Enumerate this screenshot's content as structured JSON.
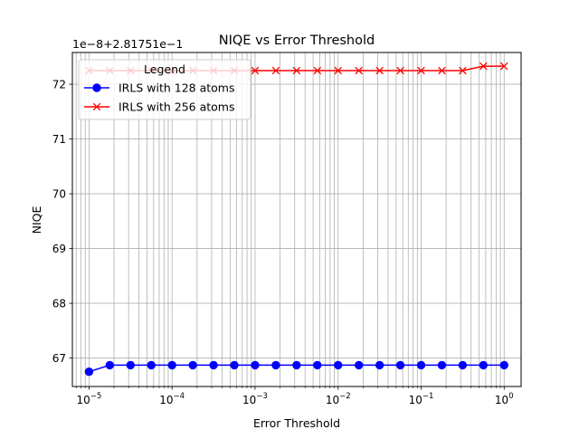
{
  "chart_data": {
    "type": "line",
    "title": "NIQE vs Error Threshold",
    "xlabel": "Error Threshold",
    "ylabel": "NIQE",
    "x_scale": "log",
    "xlim": [
      6.3e-06,
      1.6
    ],
    "ylim": [
      66.48,
      72.58
    ],
    "y_offset_text": "1e−8+2.81751e−1",
    "grid": true,
    "legend": {
      "title": "Legend",
      "placement": "upper-left"
    },
    "x": [
      1e-05,
      1.778e-05,
      3.162e-05,
      5.623e-05,
      0.0001,
      0.0001778,
      0.0003162,
      0.0005623,
      0.001,
      0.001778,
      0.003162,
      0.005623,
      0.01,
      0.01778,
      0.03162,
      0.05623,
      0.1,
      0.1778,
      0.3162,
      0.5623,
      1.0
    ],
    "x_ticks": [
      {
        "value": 1e-05,
        "base": "10",
        "exp": "−5"
      },
      {
        "value": 0.0001,
        "base": "10",
        "exp": "−4"
      },
      {
        "value": 0.001,
        "base": "10",
        "exp": "−3"
      },
      {
        "value": 0.01,
        "base": "10",
        "exp": "−2"
      },
      {
        "value": 0.1,
        "base": "10",
        "exp": "−1"
      },
      {
        "value": 1,
        "base": "10",
        "exp": "0"
      }
    ],
    "y_ticks": [
      {
        "value": 67,
        "label": "67"
      },
      {
        "value": 68,
        "label": "68"
      },
      {
        "value": 69,
        "label": "69"
      },
      {
        "value": 70,
        "label": "70"
      },
      {
        "value": 71,
        "label": "71"
      },
      {
        "value": 72,
        "label": "72"
      }
    ],
    "series": [
      {
        "name": "IRLS with 128 atoms",
        "color": "#0000ff",
        "marker": "circle",
        "values": [
          66.75,
          66.87,
          66.87,
          66.87,
          66.87,
          66.87,
          66.87,
          66.87,
          66.87,
          66.87,
          66.87,
          66.87,
          66.87,
          66.87,
          66.87,
          66.87,
          66.87,
          66.87,
          66.87,
          66.87,
          66.87
        ]
      },
      {
        "name": "IRLS with 256 atoms",
        "color": "#ff0000",
        "marker": "x",
        "values": [
          72.25,
          72.25,
          72.25,
          72.25,
          72.25,
          72.25,
          72.25,
          72.25,
          72.25,
          72.25,
          72.25,
          72.25,
          72.25,
          72.25,
          72.25,
          72.25,
          72.25,
          72.25,
          72.25,
          72.33,
          72.33
        ]
      }
    ]
  }
}
